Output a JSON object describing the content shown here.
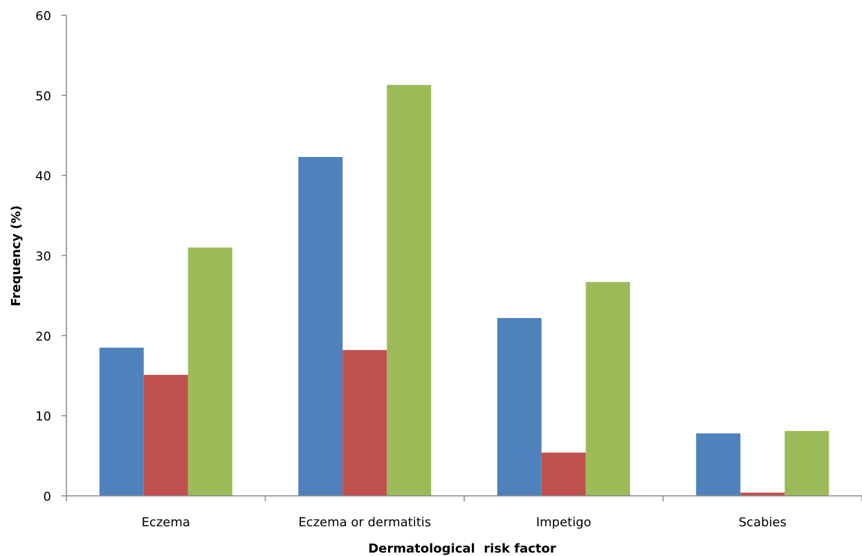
{
  "chart_data": {
    "type": "bar",
    "title": "",
    "xlabel": "Dermatological  risk factor",
    "ylabel": "Frequency (%)",
    "categories": [
      "Eczema",
      "Eczema or dermatitis",
      "Impetigo",
      "Scabies"
    ],
    "series": [
      {
        "values": [
          18.5,
          42.3,
          22.2,
          7.8
        ],
        "color": "#4F81BD"
      },
      {
        "values": [
          15.1,
          18.2,
          5.4,
          0.4
        ],
        "color": "#C0504D"
      },
      {
        "values": [
          31.0,
          51.3,
          26.7,
          8.1
        ],
        "color": "#9BBB59"
      }
    ],
    "ylim": [
      0,
      60
    ],
    "yticks": [
      0,
      10,
      20,
      30,
      40,
      50,
      60
    ],
    "grid": false,
    "legend": "none"
  }
}
